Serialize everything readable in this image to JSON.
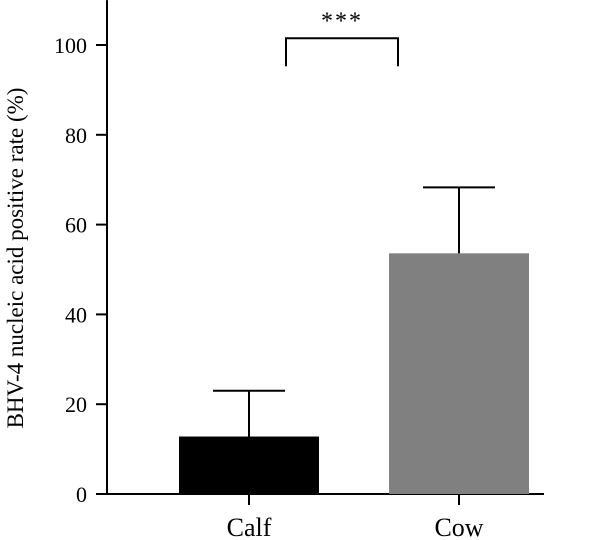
{
  "chart_data": {
    "type": "bar",
    "title": "",
    "xlabel": "",
    "ylabel": "BHV-4 nucleic acid positive rate (%)",
    "ylim": [
      0,
      110
    ],
    "yticks": [
      0,
      20,
      40,
      60,
      80,
      100
    ],
    "grid": false,
    "legend": "none",
    "categories": [
      "Calf",
      "Cow"
    ],
    "values": [
      12.8,
      53.6
    ],
    "error_upper": [
      23.0,
      68.3
    ],
    "colors": [
      "#000000",
      "#808080"
    ],
    "significance": {
      "between": [
        "Calf",
        "Cow"
      ],
      "label": "***",
      "y": 101.5
    }
  }
}
